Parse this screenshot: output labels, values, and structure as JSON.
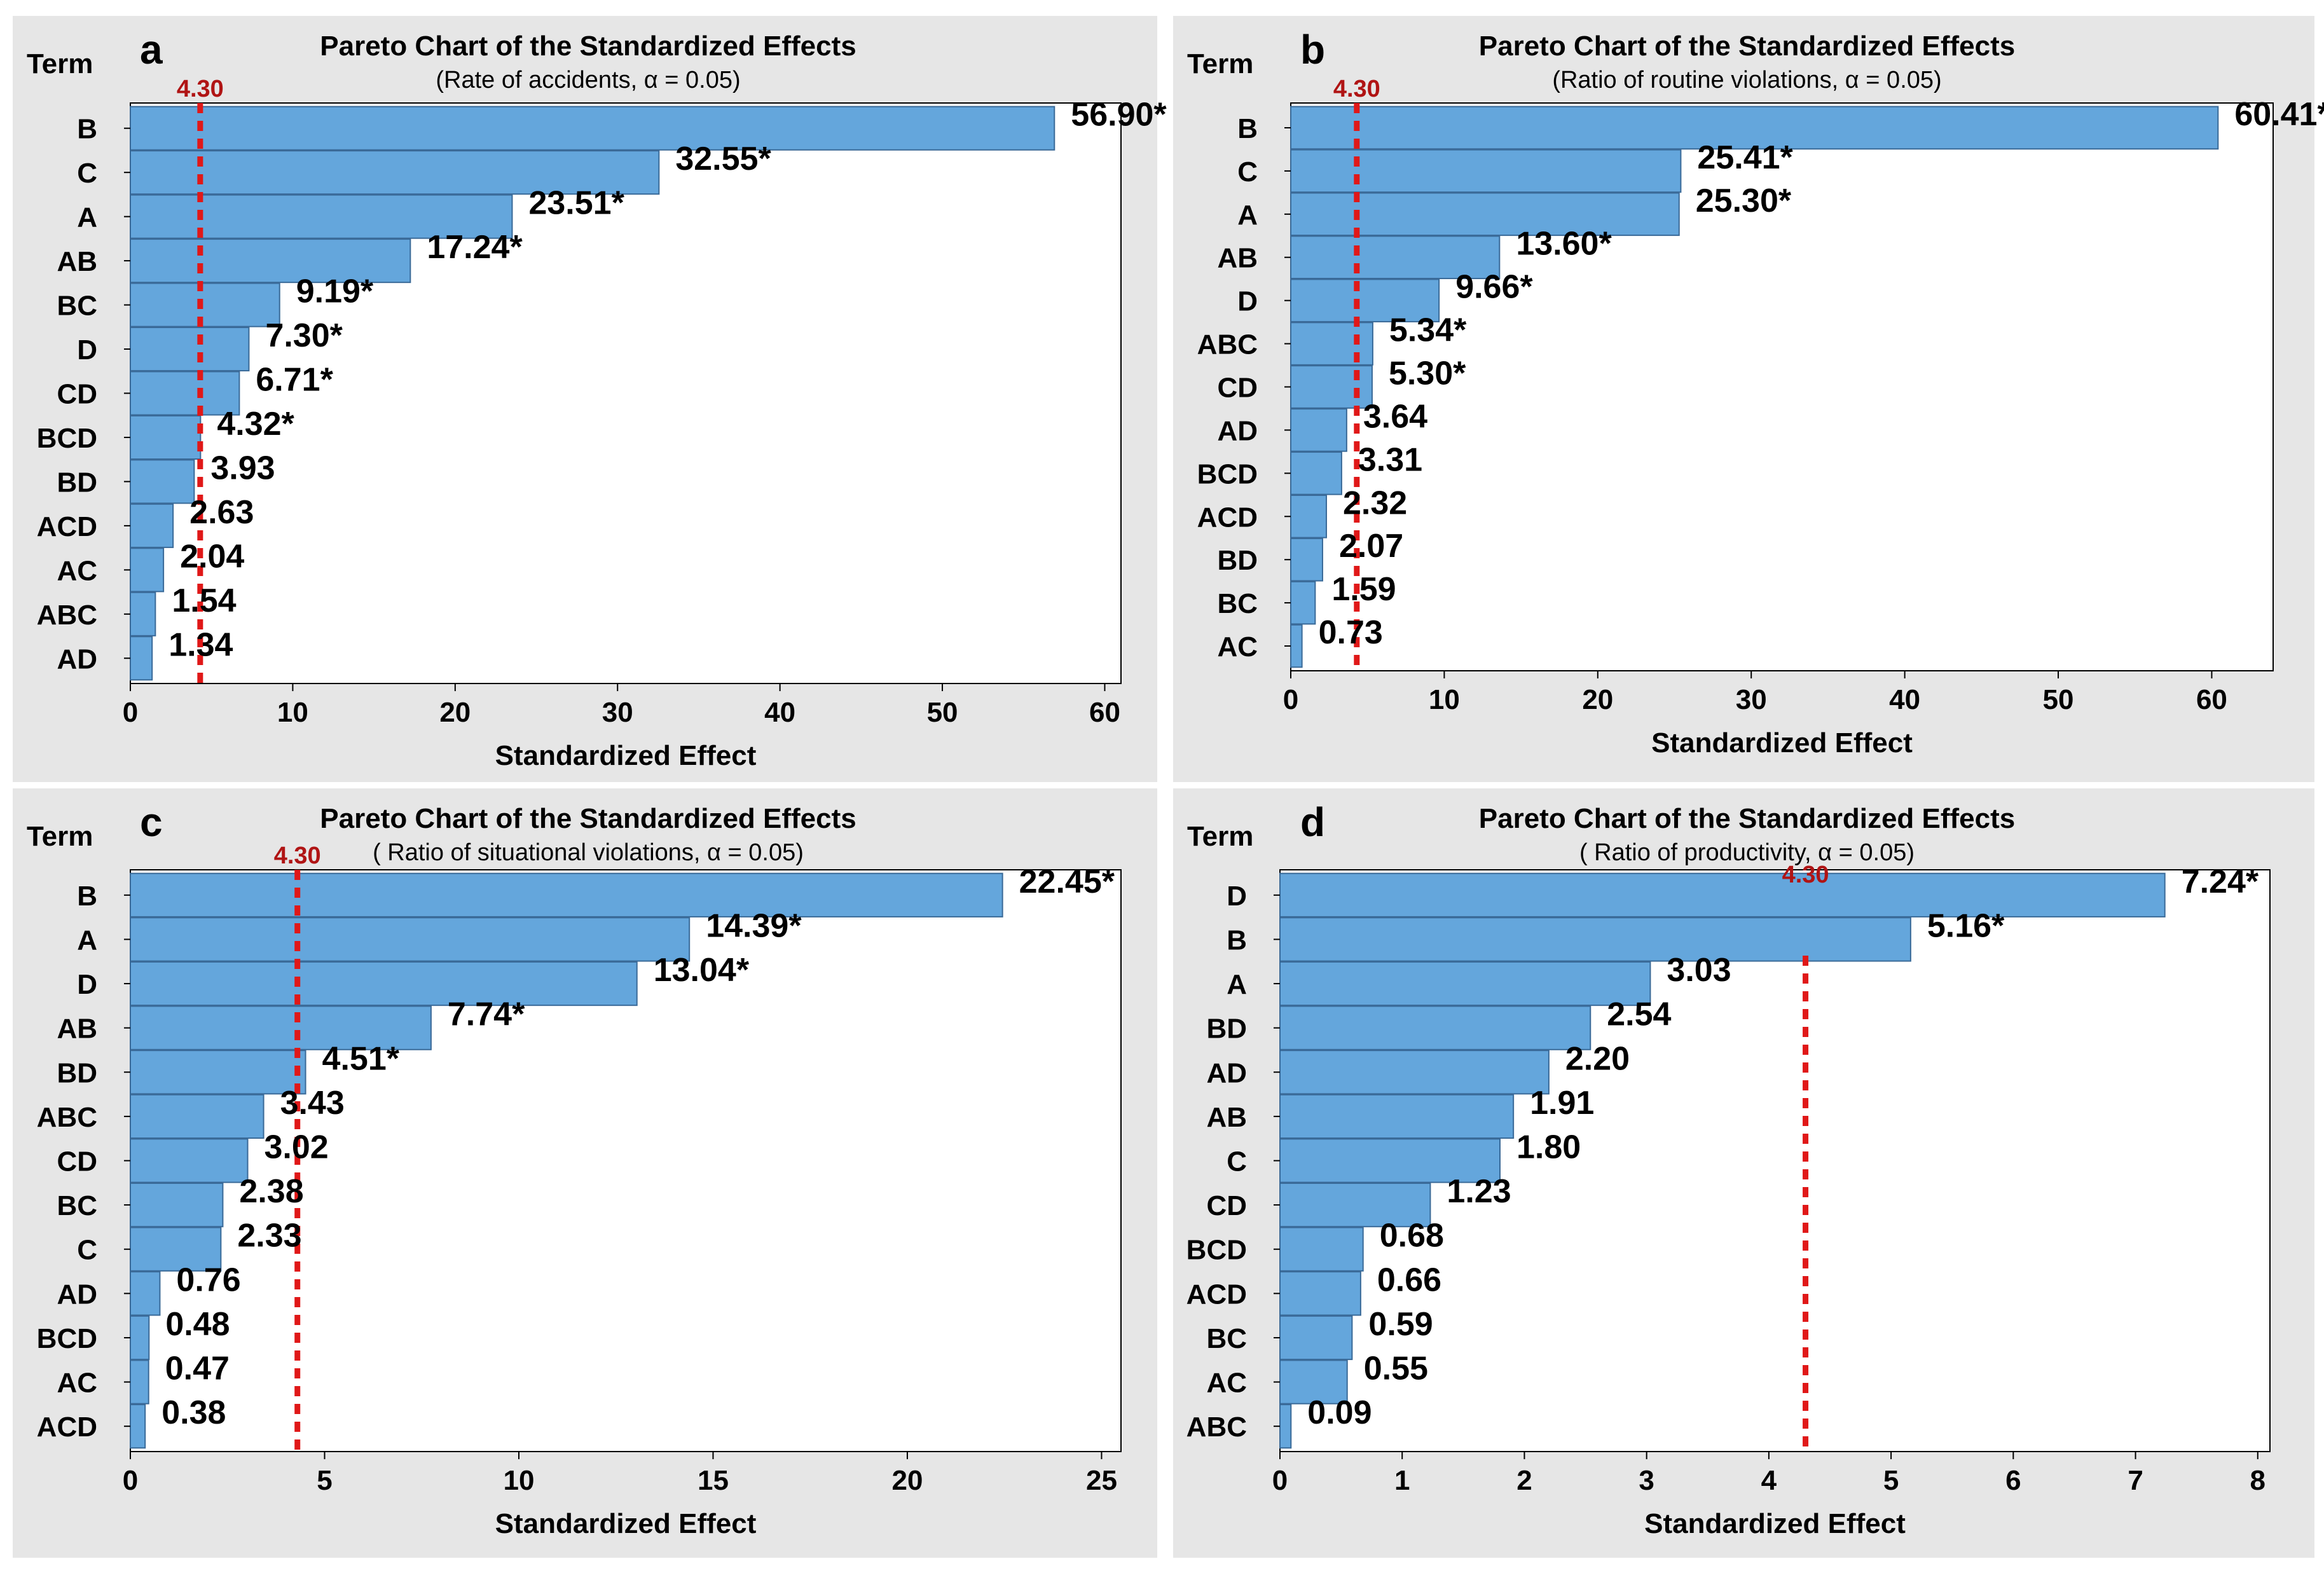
{
  "colors": {
    "panel_bg": "#e6e6e6",
    "plot_bg": "#ffffff",
    "bar_fill": "#64a6dc",
    "bar_stroke": "#3a6a98",
    "ref_line": "#e01818",
    "ref_label": "#b01414",
    "text": "#000000",
    "divider": "#ffffff"
  },
  "chart_data": [
    {
      "type": "bar",
      "orientation": "horizontal",
      "panel_letter": "a",
      "title": "Pareto Chart of the Standardized Effects",
      "subtitle": "(Rate of accidents, α = 0.05)",
      "ylabel": "Term",
      "xlabel": "Standardized Effect",
      "categories": [
        "B",
        "C",
        "A",
        "AB",
        "BC",
        "D",
        "CD",
        "BCD",
        "BD",
        "ACD",
        "AC",
        "ABC",
        "AD"
      ],
      "values": [
        56.9,
        32.55,
        23.51,
        17.24,
        9.19,
        7.3,
        6.71,
        4.32,
        3.93,
        2.63,
        2.04,
        1.54,
        1.34
      ],
      "data_labels": [
        "56.90*",
        "32.55*",
        "23.51*",
        "17.24*",
        "9.19*",
        "7.30*",
        "6.71*",
        "4.32*",
        "3.93",
        "2.63",
        "2.04",
        "1.54",
        "1.34"
      ],
      "reference_line": {
        "value": 4.3,
        "label": "4.30"
      },
      "xlim": [
        0,
        61
      ],
      "xticks": [
        0,
        10,
        20,
        30,
        40,
        50,
        60
      ],
      "xtick_labels": [
        "0",
        "10",
        "20",
        "30",
        "40",
        "50",
        "60"
      ]
    },
    {
      "type": "bar",
      "orientation": "horizontal",
      "panel_letter": "b",
      "title": "Pareto Chart of the Standardized Effects",
      "subtitle": "(Ratio of routine violations, α = 0.05)",
      "ylabel": "Term",
      "xlabel": "Standardized Effect",
      "categories": [
        "B",
        "C",
        "A",
        "AB",
        "D",
        "ABC",
        "CD",
        "AD",
        "BCD",
        "ACD",
        "BD",
        "BC",
        "AC"
      ],
      "values": [
        60.41,
        25.41,
        25.3,
        13.6,
        9.66,
        5.34,
        5.3,
        3.64,
        3.31,
        2.32,
        2.07,
        1.59,
        0.73
      ],
      "data_labels": [
        "60.41*",
        "25.41*",
        "25.30*",
        "13.60*",
        "9.66*",
        "5.34*",
        "5.30*",
        "3.64",
        "3.31",
        "2.32",
        "2.07",
        "1.59",
        "0.73"
      ],
      "reference_line": {
        "value": 4.3,
        "label": "4.30"
      },
      "xlim": [
        0,
        64
      ],
      "xticks": [
        0,
        10,
        20,
        30,
        40,
        50,
        60
      ],
      "xtick_labels": [
        "0",
        "10",
        "20",
        "30",
        "40",
        "50",
        "60"
      ]
    },
    {
      "type": "bar",
      "orientation": "horizontal",
      "panel_letter": "c",
      "title": "Pareto Chart of the Standardized Effects",
      "subtitle": "( Ratio of situational violations, α = 0.05)",
      "ylabel": "Term",
      "xlabel": "Standardized Effect",
      "categories": [
        "B",
        "A",
        "D",
        "AB",
        "BD",
        "ABC",
        "CD",
        "BC",
        "C",
        "AD",
        "BCD",
        "AC",
        "ACD"
      ],
      "values": [
        22.45,
        14.39,
        13.04,
        7.74,
        4.51,
        3.43,
        3.02,
        2.38,
        2.33,
        0.76,
        0.48,
        0.47,
        0.38
      ],
      "data_labels": [
        "22.45*",
        "14.39*",
        "13.04*",
        "7.74*",
        "4.51*",
        "3.43",
        "3.02",
        "2.38",
        "2.33",
        "0.76",
        "0.48",
        "0.47",
        "0.38"
      ],
      "reference_line": {
        "value": 4.3,
        "label": "4.30"
      },
      "xlim": [
        0,
        25.5
      ],
      "xticks": [
        0,
        5,
        10,
        15,
        20,
        25
      ],
      "xtick_labels": [
        "0",
        "5",
        "10",
        "15",
        "20",
        "25"
      ]
    },
    {
      "type": "bar",
      "orientation": "horizontal",
      "panel_letter": "d",
      "title": "Pareto Chart of the Standardized Effects",
      "subtitle": "( Ratio of productivity, α = 0.05)",
      "ylabel": "Term",
      "xlabel": "Standardized Effect",
      "categories": [
        "D",
        "B",
        "A",
        "BD",
        "AD",
        "AB",
        "C",
        "CD",
        "BCD",
        "ACD",
        "BC",
        "AC",
        "ABC"
      ],
      "values": [
        7.24,
        5.16,
        3.03,
        2.54,
        2.2,
        1.91,
        1.8,
        1.23,
        0.68,
        0.66,
        0.59,
        0.55,
        0.09
      ],
      "data_labels": [
        "7.24*",
        "5.16*",
        "3.03",
        "2.54",
        "2.20",
        "1.91",
        "1.80",
        "1.23",
        "0.68",
        "0.66",
        "0.59",
        "0.55",
        "0.09"
      ],
      "reference_line": {
        "value": 4.3,
        "label": "4.30"
      },
      "xlim": [
        0,
        8.1
      ],
      "xticks": [
        0,
        1,
        2,
        3,
        4,
        5,
        6,
        7,
        8
      ],
      "xtick_labels": [
        "0",
        "1",
        "2",
        "3",
        "4",
        "5",
        "6",
        "7",
        "8"
      ]
    }
  ]
}
